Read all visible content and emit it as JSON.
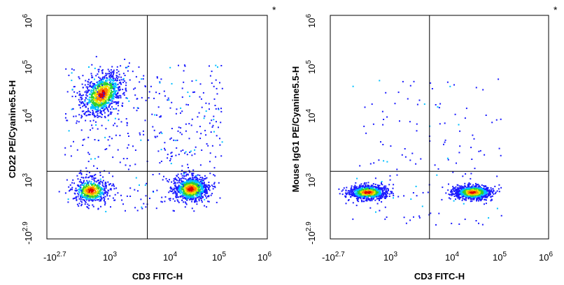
{
  "chart_data": [
    {
      "type": "scatter",
      "title": "",
      "xlabel": "CD3 FITC-H",
      "ylabel": "CD22 PE/Cyanine5.5-H",
      "corner_mark": "*",
      "x_ticks": [
        {
          "base": "-10",
          "exp": "2.7"
        },
        {
          "base": "10",
          "exp": "3"
        },
        {
          "base": "10",
          "exp": "4"
        },
        {
          "base": "10",
          "exp": "5"
        },
        {
          "base": "10",
          "exp": "6"
        }
      ],
      "y_ticks": [
        {
          "base": "-10",
          "exp": "2.9"
        },
        {
          "base": "10",
          "exp": "3"
        },
        {
          "base": "10",
          "exp": "4"
        },
        {
          "base": "10",
          "exp": "5"
        },
        {
          "base": "10",
          "exp": "6"
        }
      ],
      "quadrant_gate": {
        "x": 4000,
        "y": 1300
      },
      "populations": [
        {
          "name_hint": "CD22+ CD3-",
          "x_center": 600,
          "y_center": 25000,
          "density": "high"
        },
        {
          "name_hint": "CD22- CD3-",
          "x_center": 350,
          "y_center": 550,
          "density": "medium"
        },
        {
          "name_hint": "CD22- CD3+",
          "x_center": 25000,
          "y_center": 600,
          "density": "high"
        }
      ],
      "density_colors": [
        "#1a1aff",
        "#00c0ff",
        "#30d030",
        "#e8e800",
        "#ff8000",
        "#e00000"
      ]
    },
    {
      "type": "scatter",
      "title": "",
      "xlabel": "CD3 FITC-H",
      "ylabel": "Mouse IgG1 PE/Cyanine5.5-H",
      "corner_mark": "*",
      "x_ticks": [
        {
          "base": "-10",
          "exp": "2.7"
        },
        {
          "base": "10",
          "exp": "3"
        },
        {
          "base": "10",
          "exp": "4"
        },
        {
          "base": "10",
          "exp": "5"
        },
        {
          "base": "10",
          "exp": "6"
        }
      ],
      "y_ticks": [
        {
          "base": "-10",
          "exp": "2.9"
        },
        {
          "base": "10",
          "exp": "3"
        },
        {
          "base": "10",
          "exp": "4"
        },
        {
          "base": "10",
          "exp": "5"
        },
        {
          "base": "10",
          "exp": "6"
        }
      ],
      "quadrant_gate": {
        "x": 4000,
        "y": 1300
      },
      "populations": [
        {
          "name_hint": "CD3- isotype",
          "x_center": 280,
          "y_center": 500,
          "density": "high"
        },
        {
          "name_hint": "CD3+ isotype",
          "x_center": 25000,
          "y_center": 500,
          "density": "high"
        }
      ],
      "density_colors": [
        "#1a1aff",
        "#00c0ff",
        "#30d030",
        "#e8e800",
        "#ff8000",
        "#e00000"
      ]
    }
  ]
}
